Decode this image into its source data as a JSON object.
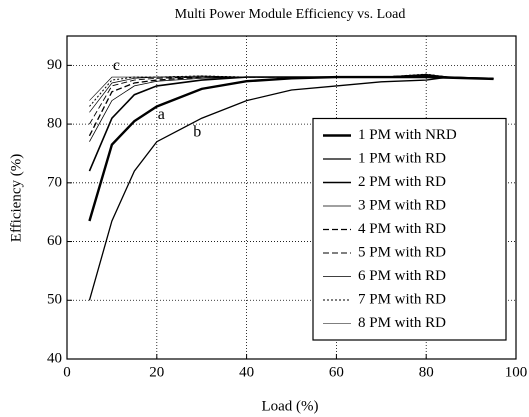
{
  "chart_data": {
    "type": "line",
    "title": "Multi Power Module Efficiency vs. Load",
    "xlabel": "Load (%)",
    "ylabel": "Efficiency (%)",
    "x": [
      5,
      10,
      15,
      20,
      30,
      40,
      50,
      60,
      70,
      80,
      85,
      95
    ],
    "xlim": [
      0,
      100
    ],
    "xticks": [
      0,
      20,
      40,
      60,
      80,
      100
    ],
    "ylim": [
      40,
      95
    ],
    "yticks": [
      40,
      50,
      60,
      70,
      80,
      90
    ],
    "legend": "lower right",
    "series": [
      {
        "name": "1 PM with NRD",
        "color": "#000000",
        "style": "solid",
        "width": 2.4,
        "values": [
          63.5,
          76.5,
          80.5,
          83,
          86,
          87.3,
          87.8,
          88,
          88,
          88,
          87.9,
          87.7
        ]
      },
      {
        "name": "1 PM with RD",
        "color": "#000000",
        "style": "solid",
        "width": 1.3,
        "values": [
          50,
          63.5,
          72,
          77,
          81,
          84,
          85.8,
          86.5,
          87.2,
          87.5,
          88,
          87.8
        ]
      },
      {
        "name": "2 PM with RD",
        "color": "#000000",
        "style": "solid",
        "width": 1.6,
        "values": [
          72,
          81,
          85,
          86.5,
          87.5,
          88,
          88,
          88,
          88,
          88.2,
          88,
          87.7
        ]
      },
      {
        "name": "3 PM with RD",
        "color": "#000000",
        "style": "solid",
        "width": 0.8,
        "values": [
          77,
          84,
          86.5,
          87.3,
          87.8,
          88,
          88,
          88,
          88,
          88.3,
          88,
          87.7
        ]
      },
      {
        "name": "4 PM with RD",
        "color": "#000000",
        "style": "dashed",
        "width": 1.3,
        "values": [
          78,
          85.5,
          87,
          87.5,
          88,
          88,
          88,
          88,
          88,
          88.4,
          88,
          87.7
        ]
      },
      {
        "name": "5 PM with RD",
        "color": "#000000",
        "style": "dashed",
        "width": 0.9,
        "values": [
          80,
          86.5,
          87.5,
          87.8,
          88,
          88,
          88,
          88,
          88,
          88.4,
          88,
          87.7
        ]
      },
      {
        "name": "6 PM with RD",
        "color": "#000000",
        "style": "solid",
        "width": 0.7,
        "values": [
          82,
          87,
          87.8,
          88,
          88,
          88,
          88,
          88,
          88,
          88.4,
          88,
          87.7
        ]
      },
      {
        "name": "7 PM with RD",
        "color": "#000000",
        "style": "dotted",
        "width": 1.0,
        "values": [
          83,
          87.5,
          88,
          88,
          88.2,
          88,
          88,
          88,
          88,
          88.5,
          88,
          87.7
        ]
      },
      {
        "name": "8 PM with RD",
        "color": "#000000",
        "style": "solid",
        "width": 0.6,
        "values": [
          84,
          88,
          88,
          88,
          88.2,
          88,
          88,
          88,
          88,
          88.5,
          88,
          87.7
        ]
      }
    ],
    "annotations": [
      {
        "text": "a",
        "x": 21,
        "y": 81.5
      },
      {
        "text": "b",
        "x": 29,
        "y": 78.5
      },
      {
        "text": "c",
        "x": 11,
        "y": 89.8
      }
    ]
  }
}
